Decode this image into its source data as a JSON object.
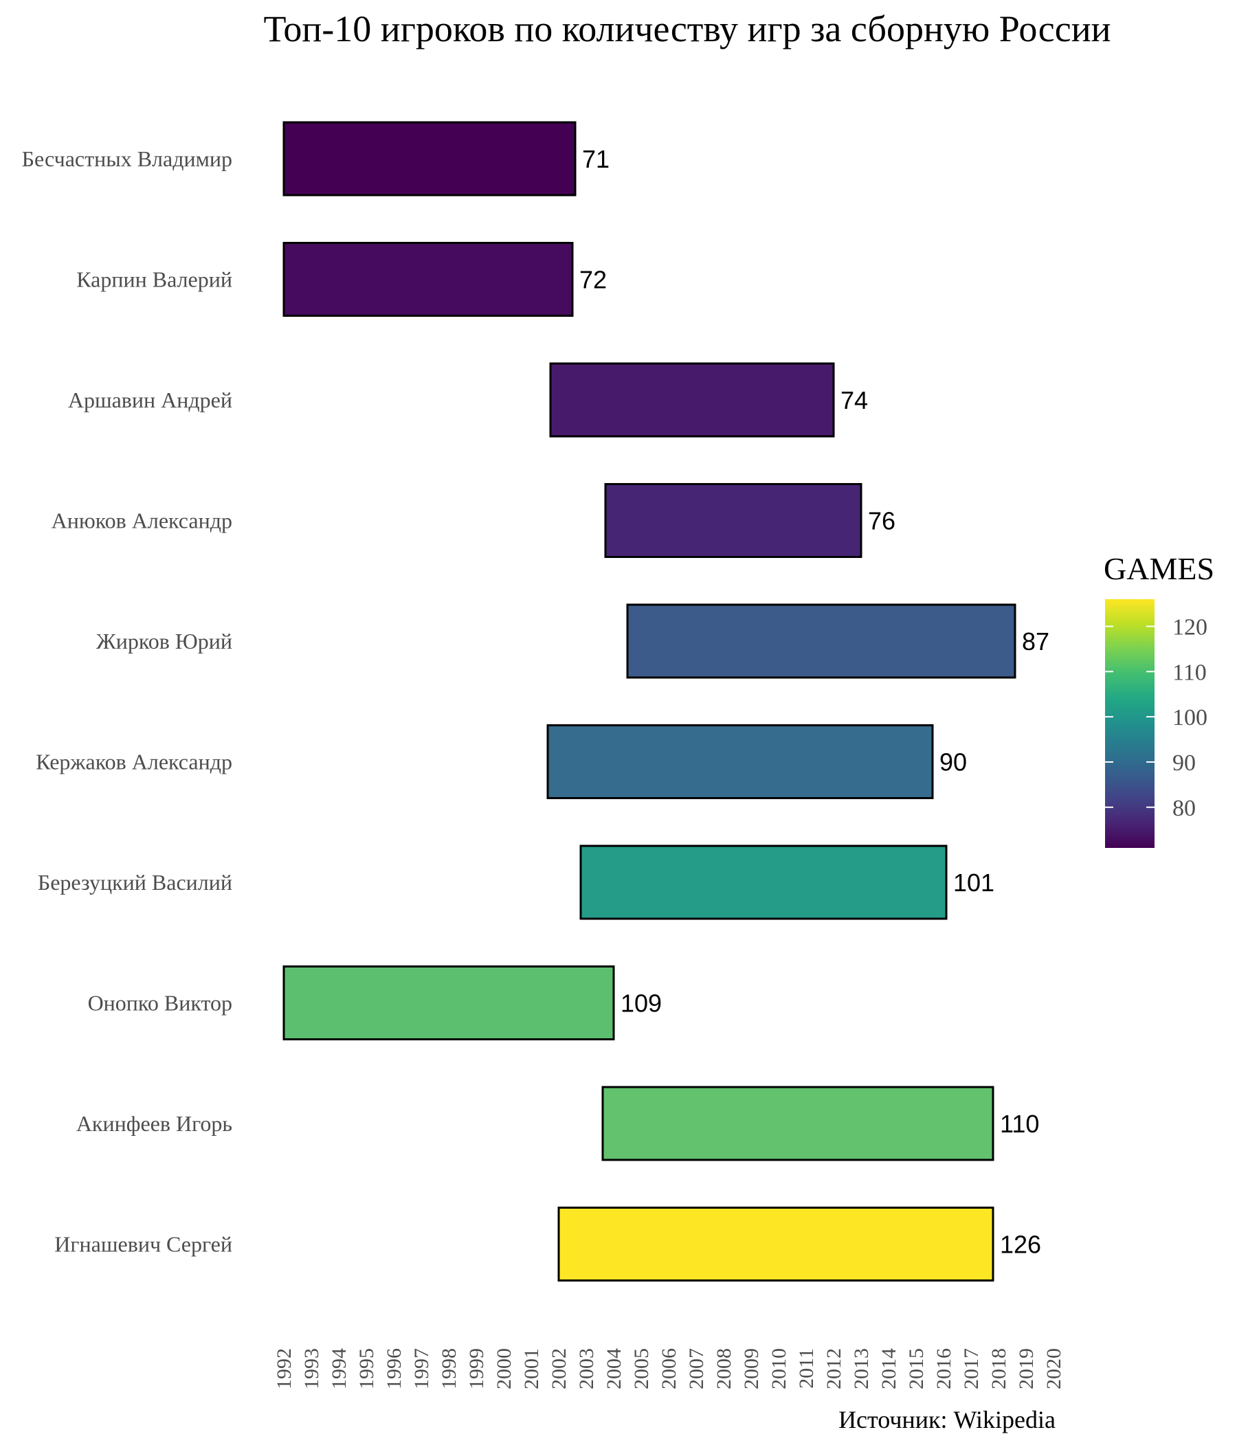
{
  "chart_data": {
    "type": "bar",
    "orientation": "horizontal-range",
    "title": "Топ-10 игроков по количеству игр за сборную России",
    "caption": "Источник: Wikipedia",
    "xlabel": "",
    "ylabel": "",
    "x_ticks": [
      "1992",
      "1993",
      "1994",
      "1995",
      "1996",
      "1997",
      "1998",
      "1999",
      "2000",
      "2001",
      "2002",
      "2003",
      "2004",
      "2005",
      "2006",
      "2007",
      "2008",
      "2009",
      "2010",
      "2011",
      "2012",
      "2013",
      "2014",
      "2015",
      "2016",
      "2017",
      "2018",
      "2019",
      "2020"
    ],
    "xlim": [
      1992,
      2020
    ],
    "grid": false,
    "legend": {
      "title": "GAMES",
      "position": "right",
      "ticks": [
        80,
        90,
        100,
        110,
        120
      ],
      "range": [
        71,
        126
      ],
      "colormap": "viridis"
    },
    "players": [
      {
        "name": "Бесчастных Владимир",
        "start": 1992.0,
        "end": 2002.6,
        "games": 71,
        "label": "71",
        "color": "#440154"
      },
      {
        "name": "Карпин Валерий",
        "start": 1992.0,
        "end": 2002.5,
        "games": 72,
        "label": "72",
        "color": "#460B5E"
      },
      {
        "name": "Аршавин Андрей",
        "start": 2001.7,
        "end": 2012.0,
        "games": 74,
        "label": "74",
        "color": "#481A6C"
      },
      {
        "name": "Анюков Александр",
        "start": 2003.7,
        "end": 2013.0,
        "games": 76,
        "label": "76",
        "color": "#472575"
      },
      {
        "name": "Жирков Юрий",
        "start": 2004.5,
        "end": 2018.6,
        "games": 87,
        "label": "87",
        "color": "#3C5A8A"
      },
      {
        "name": "Кержаков Александр",
        "start": 2001.6,
        "end": 2015.6,
        "games": 90,
        "label": "90",
        "color": "#366C8E"
      },
      {
        "name": "Березуцкий Василий",
        "start": 2002.8,
        "end": 2016.1,
        "games": 101,
        "label": "101",
        "color": "#259C88"
      },
      {
        "name": "Онопко Виктор",
        "start": 1992.0,
        "end": 2004.0,
        "games": 109,
        "label": "109",
        "color": "#5CBF6F"
      },
      {
        "name": "Акинфеев Игорь",
        "start": 2003.6,
        "end": 2017.8,
        "games": 110,
        "label": "110",
        "color": "#62C26D"
      },
      {
        "name": "Игнашевич Сергей",
        "start": 2002.0,
        "end": 2017.8,
        "games": 126,
        "label": "126",
        "color": "#FDE725"
      }
    ]
  }
}
